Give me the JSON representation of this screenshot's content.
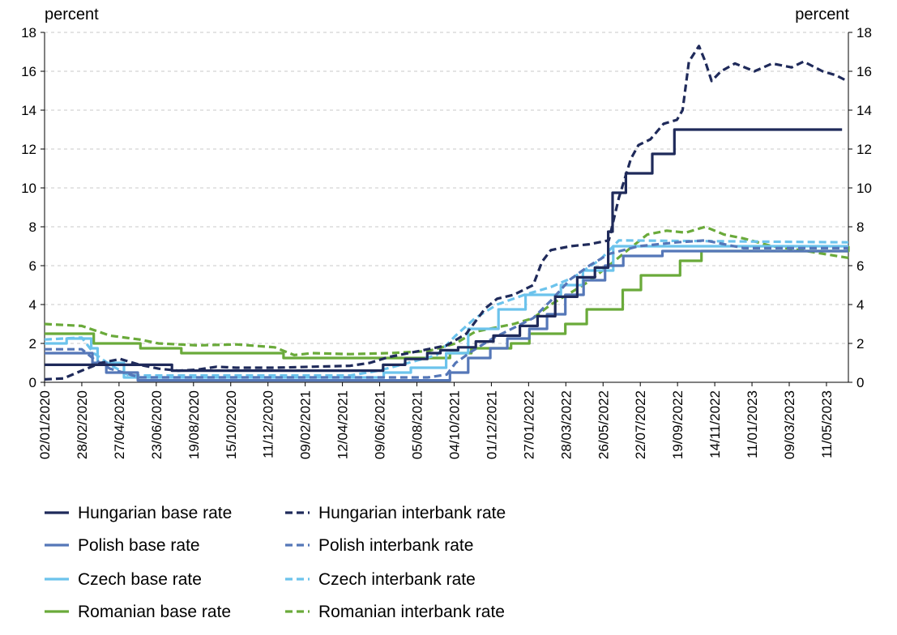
{
  "chart_data": {
    "type": "line",
    "left_unit": "percent",
    "right_unit": "percent",
    "ylim": [
      0,
      18
    ],
    "yticks": [
      "0",
      "2",
      "4",
      "6",
      "8",
      "10",
      "12",
      "14",
      "16",
      "18"
    ],
    "x_ticks": [
      "02/01/2020",
      "28/02/2020",
      "27/04/2020",
      "23/06/2020",
      "19/08/2020",
      "15/10/2020",
      "11/12/2020",
      "09/02/2021",
      "12/04/2021",
      "09/06/2021",
      "05/08/2021",
      "04/10/2021",
      "01/12/2021",
      "27/01/2022",
      "28/03/2022",
      "26/05/2022",
      "22/07/2022",
      "19/09/2022",
      "14/11/2022",
      "11/01/2023",
      "09/03/2023",
      "11/05/2023"
    ],
    "x_range": [
      "2020-01-02",
      "2023-06-30"
    ],
    "grid": true,
    "legend_position": "bottom",
    "colors": {
      "hungarian": "#1f2a5a",
      "polish": "#5577b8",
      "czech": "#6cc3ec",
      "romanian": "#6aaa3a"
    },
    "series": [
      {
        "name": "Hungarian base rate",
        "color": "#1f2a5a",
        "style": "solid",
        "step": true,
        "points": [
          [
            "2020-01-02",
            0.9
          ],
          [
            "2020-07-22",
            0.6
          ],
          [
            "2021-06-22",
            0.9
          ],
          [
            "2021-07-27",
            1.2
          ],
          [
            "2021-08-31",
            1.5
          ],
          [
            "2021-09-21",
            1.65
          ],
          [
            "2021-10-19",
            1.8
          ],
          [
            "2021-11-16",
            2.1
          ],
          [
            "2021-12-14",
            2.4
          ],
          [
            "2022-01-25",
            2.9
          ],
          [
            "2022-02-22",
            3.4
          ],
          [
            "2022-03-22",
            4.4
          ],
          [
            "2022-04-26",
            5.4
          ],
          [
            "2022-05-24",
            5.9
          ],
          [
            "2022-06-14",
            7.75
          ],
          [
            "2022-06-21",
            9.75
          ],
          [
            "2022-07-12",
            10.75
          ],
          [
            "2022-08-23",
            11.75
          ],
          [
            "2022-09-27",
            13.0
          ],
          [
            "2023-06-20",
            13.0
          ]
        ]
      },
      {
        "name": "Hungarian interbank rate",
        "color": "#1f2a5a",
        "style": "dashed",
        "points": [
          [
            "2020-01-02",
            0.15
          ],
          [
            "2020-02-01",
            0.2
          ],
          [
            "2020-03-01",
            0.6
          ],
          [
            "2020-04-01",
            1.0
          ],
          [
            "2020-05-01",
            1.2
          ],
          [
            "2020-06-01",
            0.9
          ],
          [
            "2020-07-01",
            0.7
          ],
          [
            "2020-08-01",
            0.6
          ],
          [
            "2020-09-01",
            0.65
          ],
          [
            "2020-10-01",
            0.8
          ],
          [
            "2020-11-01",
            0.75
          ],
          [
            "2021-01-01",
            0.75
          ],
          [
            "2021-03-01",
            0.8
          ],
          [
            "2021-05-01",
            0.85
          ],
          [
            "2021-06-01",
            1.0
          ],
          [
            "2021-07-01",
            1.3
          ],
          [
            "2021-08-01",
            1.5
          ],
          [
            "2021-09-01",
            1.7
          ],
          [
            "2021-10-01",
            1.9
          ],
          [
            "2021-11-01",
            2.5
          ],
          [
            "2021-12-01",
            3.8
          ],
          [
            "2021-12-20",
            4.3
          ],
          [
            "2022-01-15",
            4.5
          ],
          [
            "2022-02-15",
            5.0
          ],
          [
            "2022-03-01",
            6.2
          ],
          [
            "2022-03-15",
            6.8
          ],
          [
            "2022-04-15",
            7.0
          ],
          [
            "2022-05-15",
            7.1
          ],
          [
            "2022-06-15",
            7.3
          ],
          [
            "2022-07-01",
            9.5
          ],
          [
            "2022-07-20",
            11.5
          ],
          [
            "2022-08-01",
            12.2
          ],
          [
            "2022-08-20",
            12.5
          ],
          [
            "2022-09-10",
            13.3
          ],
          [
            "2022-10-01",
            13.5
          ],
          [
            "2022-10-10",
            14.0
          ],
          [
            "2022-10-20",
            16.5
          ],
          [
            "2022-11-05",
            17.3
          ],
          [
            "2022-11-15",
            16.5
          ],
          [
            "2022-11-25",
            15.5
          ],
          [
            "2022-12-10",
            16.0
          ],
          [
            "2023-01-01",
            16.4
          ],
          [
            "2023-02-01",
            16.0
          ],
          [
            "2023-03-01",
            16.4
          ],
          [
            "2023-04-01",
            16.2
          ],
          [
            "2023-04-20",
            16.5
          ],
          [
            "2023-05-20",
            16.0
          ],
          [
            "2023-06-10",
            15.8
          ],
          [
            "2023-06-28",
            15.5
          ]
        ]
      },
      {
        "name": "Polish base rate",
        "color": "#5577b8",
        "style": "solid",
        "step": true,
        "points": [
          [
            "2020-01-02",
            1.5
          ],
          [
            "2020-03-18",
            1.0
          ],
          [
            "2020-04-09",
            0.5
          ],
          [
            "2020-05-29",
            0.1
          ],
          [
            "2021-10-06",
            0.5
          ],
          [
            "2021-11-04",
            1.25
          ],
          [
            "2021-12-09",
            1.75
          ],
          [
            "2022-01-05",
            2.25
          ],
          [
            "2022-02-09",
            2.75
          ],
          [
            "2022-03-09",
            3.5
          ],
          [
            "2022-04-07",
            4.5
          ],
          [
            "2022-05-06",
            5.25
          ],
          [
            "2022-06-09",
            6.0
          ],
          [
            "2022-07-08",
            6.5
          ],
          [
            "2022-09-08",
            6.75
          ],
          [
            "2023-06-30",
            6.75
          ]
        ]
      },
      {
        "name": "Polish interbank rate",
        "color": "#5577b8",
        "style": "dashed",
        "points": [
          [
            "2020-01-02",
            1.7
          ],
          [
            "2020-03-01",
            1.7
          ],
          [
            "2020-03-20",
            1.2
          ],
          [
            "2020-04-15",
            0.7
          ],
          [
            "2020-06-01",
            0.25
          ],
          [
            "2021-09-01",
            0.25
          ],
          [
            "2021-10-01",
            0.4
          ],
          [
            "2021-10-15",
            1.0
          ],
          [
            "2021-11-10",
            1.6
          ],
          [
            "2021-12-15",
            2.3
          ],
          [
            "2022-01-15",
            2.8
          ],
          [
            "2022-02-15",
            3.3
          ],
          [
            "2022-03-15",
            4.2
          ],
          [
            "2022-04-15",
            5.3
          ],
          [
            "2022-05-15",
            6.0
          ],
          [
            "2022-06-15",
            6.6
          ],
          [
            "2022-08-01",
            7.0
          ],
          [
            "2022-10-01",
            7.2
          ],
          [
            "2022-11-15",
            7.3
          ],
          [
            "2023-01-15",
            6.9
          ],
          [
            "2023-06-30",
            6.9
          ]
        ]
      },
      {
        "name": "Czech base rate",
        "color": "#6cc3ec",
        "style": "solid",
        "step": true,
        "points": [
          [
            "2020-01-02",
            2.0
          ],
          [
            "2020-02-06",
            2.25
          ],
          [
            "2020-03-16",
            1.75
          ],
          [
            "2020-03-26",
            1.0
          ],
          [
            "2020-05-07",
            0.25
          ],
          [
            "2021-06-23",
            0.5
          ],
          [
            "2021-08-05",
            0.75
          ],
          [
            "2021-09-30",
            1.5
          ],
          [
            "2021-11-04",
            2.75
          ],
          [
            "2021-12-22",
            3.75
          ],
          [
            "2022-02-03",
            4.5
          ],
          [
            "2022-03-31",
            5.0
          ],
          [
            "2022-05-05",
            5.75
          ],
          [
            "2022-06-22",
            7.0
          ],
          [
            "2023-06-30",
            7.0
          ]
        ]
      },
      {
        "name": "Czech interbank rate",
        "color": "#6cc3ec",
        "style": "dashed",
        "points": [
          [
            "2020-01-02",
            2.2
          ],
          [
            "2020-03-01",
            2.3
          ],
          [
            "2020-03-20",
            1.5
          ],
          [
            "2020-04-15",
            0.9
          ],
          [
            "2020-05-15",
            0.35
          ],
          [
            "2021-05-01",
            0.35
          ],
          [
            "2021-06-15",
            0.6
          ],
          [
            "2021-08-01",
            1.0
          ],
          [
            "2021-09-15",
            1.4
          ],
          [
            "2021-10-15",
            2.4
          ],
          [
            "2021-11-15",
            3.3
          ],
          [
            "2021-12-20",
            4.0
          ],
          [
            "2022-02-01",
            4.5
          ],
          [
            "2022-03-15",
            4.9
          ],
          [
            "2022-04-20",
            5.4
          ],
          [
            "2022-06-01",
            6.3
          ],
          [
            "2022-07-01",
            7.3
          ],
          [
            "2023-06-30",
            7.2
          ]
        ]
      },
      {
        "name": "Romanian base rate",
        "color": "#6aaa3a",
        "style": "solid",
        "step": true,
        "points": [
          [
            "2020-01-02",
            2.5
          ],
          [
            "2020-03-20",
            2.0
          ],
          [
            "2020-06-02",
            1.75
          ],
          [
            "2020-08-06",
            1.5
          ],
          [
            "2021-01-15",
            1.25
          ],
          [
            "2021-10-06",
            1.5
          ],
          [
            "2021-11-09",
            1.75
          ],
          [
            "2022-01-11",
            2.0
          ],
          [
            "2022-02-09",
            2.5
          ],
          [
            "2022-04-07",
            3.0
          ],
          [
            "2022-05-11",
            3.75
          ],
          [
            "2022-07-07",
            4.75
          ],
          [
            "2022-08-05",
            5.5
          ],
          [
            "2022-10-06",
            6.25
          ],
          [
            "2022-11-09",
            6.75
          ],
          [
            "2023-06-30",
            7.0
          ]
        ]
      },
      {
        "name": "Romanian interbank rate",
        "color": "#6aaa3a",
        "style": "dashed",
        "points": [
          [
            "2020-01-02",
            3.0
          ],
          [
            "2020-03-01",
            2.9
          ],
          [
            "2020-04-15",
            2.4
          ],
          [
            "2020-06-01",
            2.2
          ],
          [
            "2020-07-01",
            2.0
          ],
          [
            "2020-09-01",
            1.9
          ],
          [
            "2020-11-01",
            1.95
          ],
          [
            "2021-01-01",
            1.8
          ],
          [
            "2021-02-01",
            1.4
          ],
          [
            "2021-03-01",
            1.5
          ],
          [
            "2021-05-01",
            1.45
          ],
          [
            "2021-07-01",
            1.5
          ],
          [
            "2021-09-01",
            1.6
          ],
          [
            "2021-10-15",
            2.0
          ],
          [
            "2021-11-15",
            2.6
          ],
          [
            "2021-12-15",
            2.8
          ],
          [
            "2022-01-15",
            3.0
          ],
          [
            "2022-02-15",
            3.3
          ],
          [
            "2022-03-15",
            4.0
          ],
          [
            "2022-04-15",
            4.6
          ],
          [
            "2022-05-15",
            5.2
          ],
          [
            "2022-06-15",
            6.0
          ],
          [
            "2022-07-15",
            6.8
          ],
          [
            "2022-08-15",
            7.6
          ],
          [
            "2022-09-15",
            7.8
          ],
          [
            "2022-10-15",
            7.7
          ],
          [
            "2022-11-15",
            8.0
          ],
          [
            "2022-12-15",
            7.6
          ],
          [
            "2023-01-15",
            7.4
          ],
          [
            "2023-03-01",
            7.0
          ],
          [
            "2023-04-15",
            6.8
          ],
          [
            "2023-06-30",
            6.4
          ]
        ]
      }
    ]
  }
}
